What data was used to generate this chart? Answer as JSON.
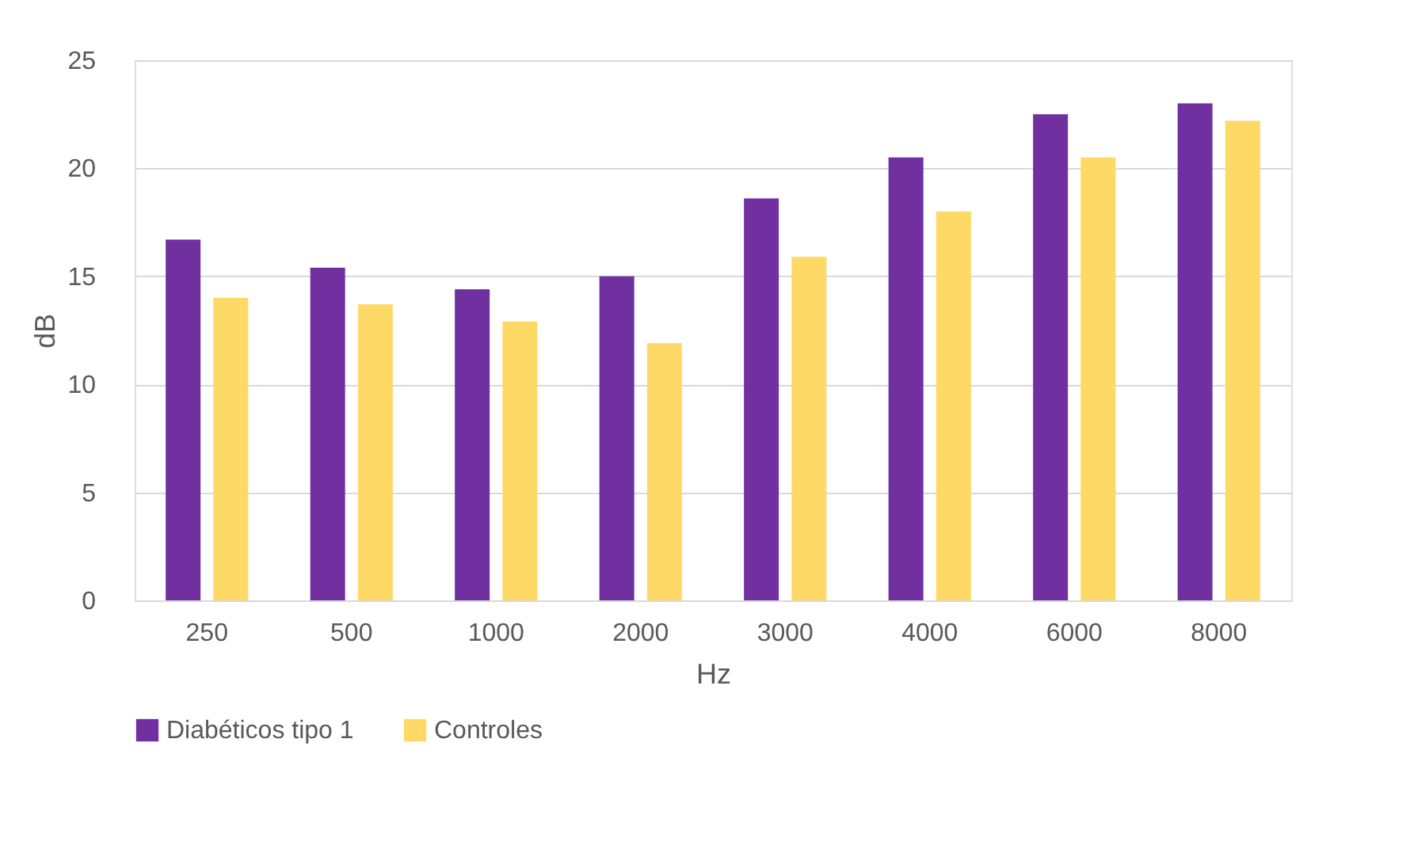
{
  "chart_data": {
    "type": "bar",
    "xlabel": "Hz",
    "ylabel": "dB",
    "categories": [
      "250",
      "500",
      "1000",
      "2000",
      "3000",
      "4000",
      "6000",
      "8000"
    ],
    "series": [
      {
        "name": "Diabéticos tipo 1",
        "color": "#7030a0",
        "values": [
          16.7,
          15.4,
          14.4,
          15.0,
          18.6,
          20.5,
          22.5,
          23.0
        ]
      },
      {
        "name": "Controles",
        "color": "#ffd966",
        "values": [
          14.0,
          13.7,
          12.9,
          11.9,
          15.9,
          18.0,
          20.5,
          22.2
        ]
      }
    ],
    "ylim": [
      0,
      25
    ],
    "yticks": [
      0,
      5,
      10,
      15,
      20,
      25
    ],
    "grid": "y",
    "legend": "bottom"
  }
}
